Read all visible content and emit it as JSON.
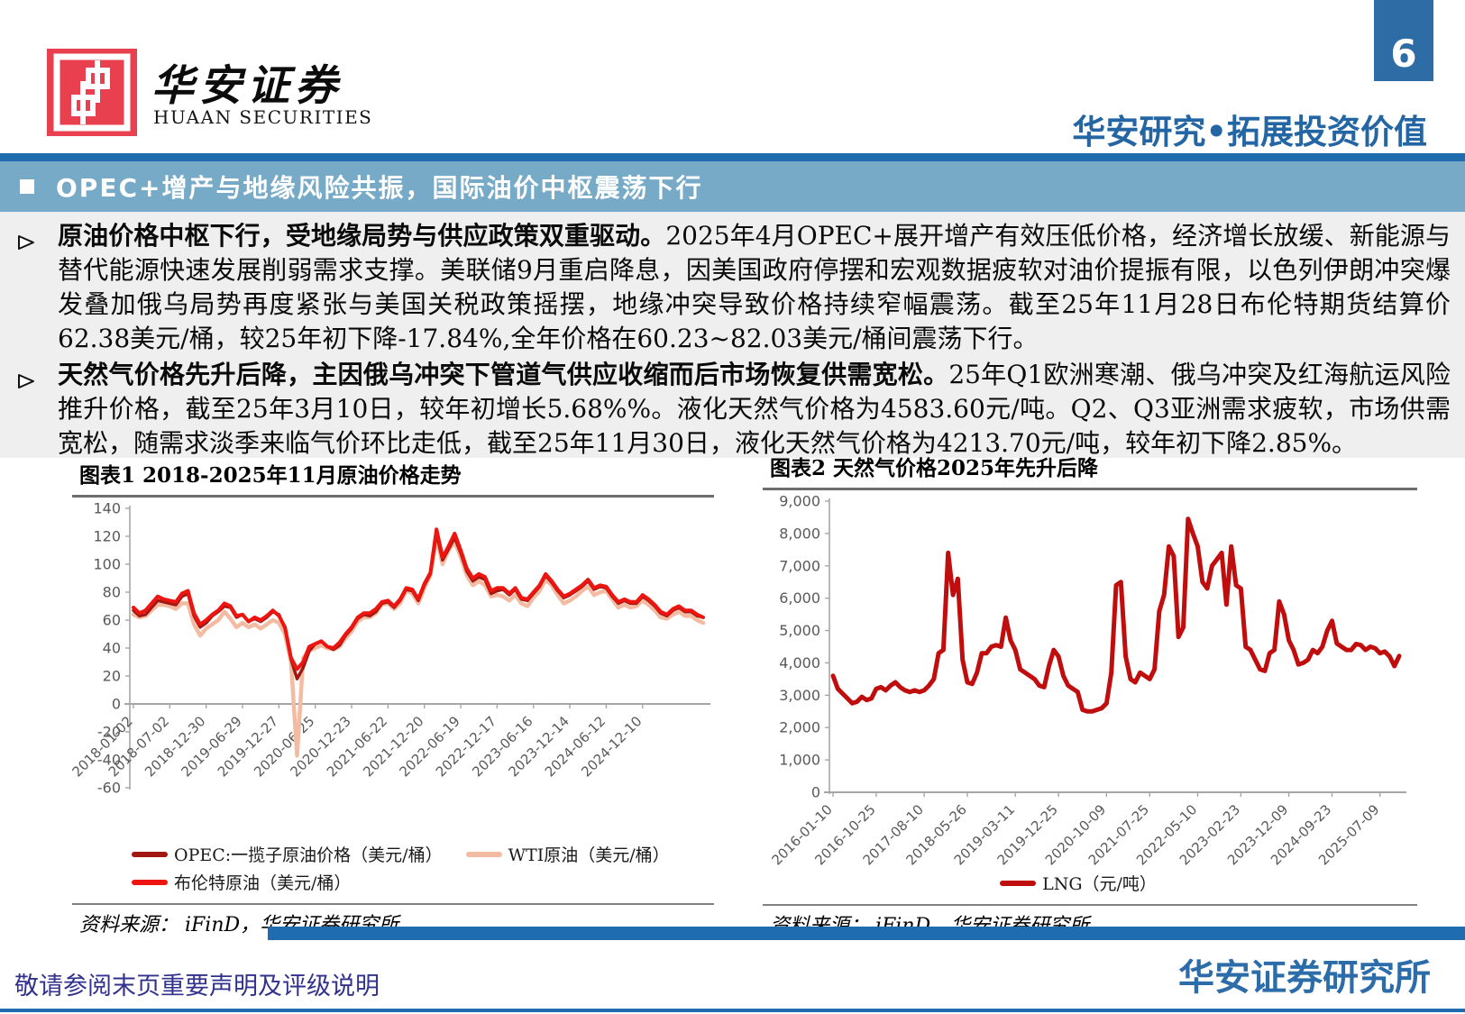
{
  "header": {
    "brand_cn": "华安证券",
    "brand_en": "HUAAN SECURITIES",
    "page_number": "6",
    "slogan": "华安研究•拓展投资价值",
    "section_title": "OPEC+增产与地缘风险共振，国际油价中枢震荡下行"
  },
  "bullets": [
    {
      "lead": "原油价格中枢下行，受地缘局势与供应政策双重驱动。",
      "body": "2025年4月OPEC+展开增产有效压低价格，经济增长放缓、新能源与替代能源快速发展削弱需求支撑。美联储9月重启降息，因美国政府停摆和宏观数据疲软对油价提振有限，以色列伊朗冲突爆发叠加俄乌局势再度紧张与美国关税政策摇摆，地缘冲突导致价格持续窄幅震荡。截至25年11月28日布伦特期货结算价62.38美元/桶，较25年初下降-17.84%,全年价格在60.23~82.03美元/桶间震荡下行。"
    },
    {
      "lead": "天然气价格先升后降，主因俄乌冲突下管道气供应收缩而后市场恢复供需宽松。",
      "body": "25年Q1欧洲寒潮、俄乌冲突及红海航运风险推升价格，截至25年3月10日，较年初增长5.68%%。液化天然气价格为4583.60元/吨。Q2、Q3亚洲需求疲软，市场供需宽松，随需求淡季来临气价环比走低，截至25年11月30日，液化天然气价格为4213.70元/吨，较年初下降2.85%。"
    }
  ],
  "charts": [
    {
      "title": "图表1 2018-2025年11月原油价格走势",
      "source": "资料来源：  iFinD，华安证券研究所"
    },
    {
      "title": "图表2 天然气价格2025年先升后降",
      "source": "资料来源：  iFinD，华安证券研究所"
    }
  ],
  "footer": {
    "disclaimer": "敬请参阅末页重要声明及评级说明",
    "institute": "华安证券研究所"
  },
  "colors": {
    "accent_blue": "#1F6CB0",
    "band_blue": "#76AAC7",
    "strip_blue": "#1E6CAD",
    "page_box_blue": "#2E6CA6",
    "slogan_blue": "#2465A4",
    "logo_red": "#E8404F",
    "opec_dark_red": "#A0180F",
    "wti_salmon": "#F3BCA2",
    "brent_red": "#EE1511",
    "lng_red": "#C00D0D"
  },
  "chart_data": [
    {
      "type": "line",
      "title": "图表1 2018-2025年11月原油价格走势",
      "ylabel": "美元/桶",
      "ylim": [
        -60,
        140
      ],
      "yticks": [
        140,
        120,
        100,
        80,
        60,
        40,
        20,
        0,
        -20,
        -40,
        -60
      ],
      "ytick_labels": [
        "140",
        "120",
        "100",
        "80",
        "60",
        "40",
        "20",
        "0",
        "-20",
        "-40",
        "-60"
      ],
      "grid": false,
      "legend_position": "bottom",
      "xticks": [
        {
          "label": "2018-01-02",
          "i": 0
        },
        {
          "label": "2018-07-02",
          "i": 6
        },
        {
          "label": "2018-12-30",
          "i": 12
        },
        {
          "label": "2019-06-29",
          "i": 18
        },
        {
          "label": "2019-12-27",
          "i": 24
        },
        {
          "label": "2020-06-25",
          "i": 30
        },
        {
          "label": "2020-12-23",
          "i": 36
        },
        {
          "label": "2021-06-22",
          "i": 42
        },
        {
          "label": "2021-12-20",
          "i": 48
        },
        {
          "label": "2022-06-19",
          "i": 54
        },
        {
          "label": "2022-12-17",
          "i": 60
        },
        {
          "label": "2023-06-16",
          "i": 66
        },
        {
          "label": "2023-12-14",
          "i": 72
        },
        {
          "label": "2024-06-12",
          "i": 78
        },
        {
          "label": "2024-12-10",
          "i": 84
        }
      ],
      "series": [
        {
          "name": "WTI原油（美元/桶）",
          "color": "#F3BCA2",
          "stroke_width": 4.5,
          "values": [
            64,
            62,
            63,
            67,
            71,
            71,
            70,
            68,
            72,
            72,
            57,
            49,
            54,
            57,
            60,
            66,
            61,
            55,
            58,
            55,
            57,
            54,
            57,
            60,
            58,
            50,
            30,
            -37,
            33,
            38,
            40,
            42,
            40,
            39,
            41,
            47,
            52,
            59,
            62,
            62,
            65,
            71,
            72,
            68,
            72,
            81,
            79,
            72,
            83,
            92,
            119,
            100,
            110,
            116,
            105,
            92,
            85,
            88,
            85,
            77,
            78,
            77,
            74,
            78,
            72,
            70,
            76,
            81,
            89,
            85,
            78,
            72,
            74,
            77,
            81,
            84,
            78,
            80,
            81,
            75,
            69,
            71,
            69,
            70,
            74,
            71,
            67,
            62,
            61,
            64,
            66,
            63,
            63,
            60,
            58
          ]
        },
        {
          "name": "OPEC:一揽子原油价格（美元/桶）",
          "color": "#A0180F",
          "stroke_width": 3.5,
          "values": [
            67,
            63,
            64,
            69,
            74,
            73,
            72,
            71,
            77,
            79,
            63,
            55,
            58,
            63,
            66,
            70,
            69,
            62,
            64,
            59,
            61,
            59,
            62,
            66,
            64,
            54,
            32,
            18,
            26,
            38,
            43,
            45,
            41,
            39,
            42,
            49,
            54,
            61,
            64,
            63,
            66,
            72,
            73,
            69,
            74,
            82,
            81,
            74,
            85,
            93,
            122,
            103,
            111,
            119,
            108,
            95,
            88,
            91,
            89,
            79,
            81,
            82,
            78,
            82,
            75,
            74,
            79,
            84,
            92,
            87,
            81,
            76,
            78,
            81,
            84,
            88,
            82,
            84,
            83,
            77,
            72,
            74,
            72,
            72,
            77,
            74,
            70,
            65,
            63,
            67,
            69,
            66,
            66,
            63,
            62
          ]
        },
        {
          "name": "布伦特原油（美元/桶）",
          "color": "#EE1511",
          "stroke_width": 4,
          "values": [
            69,
            65,
            67,
            72,
            77,
            75,
            74,
            73,
            79,
            81,
            65,
            57,
            60,
            64,
            67,
            72,
            70,
            63,
            64,
            59,
            62,
            60,
            63,
            67,
            63,
            55,
            33,
            25,
            30,
            41,
            43,
            45,
            41,
            40,
            44,
            50,
            55,
            62,
            65,
            65,
            68,
            73,
            74,
            70,
            75,
            83,
            82,
            75,
            86,
            94,
            125,
            105,
            113,
            122,
            110,
            97,
            90,
            93,
            91,
            81,
            83,
            83,
            79,
            83,
            76,
            75,
            80,
            85,
            93,
            88,
            82,
            77,
            79,
            82,
            85,
            89,
            83,
            85,
            84,
            78,
            73,
            75,
            73,
            73,
            78,
            75,
            71,
            66,
            64,
            68,
            70,
            67,
            67,
            64,
            62
          ]
        }
      ],
      "legend": [
        {
          "label": "OPEC:一揽子原油价格（美元/桶）",
          "color": "#A0180F"
        },
        {
          "label": "WTI原油（美元/桶）",
          "color": "#F3BCA2"
        },
        {
          "label": "布伦特原油（美元/桶）",
          "color": "#EE1511"
        }
      ]
    },
    {
      "type": "line",
      "title": "图表2 天然气价格2025年先升后降",
      "ylabel": "元/吨",
      "ylim": [
        0,
        9000
      ],
      "yticks": [
        9000,
        8000,
        7000,
        6000,
        5000,
        4000,
        3000,
        2000,
        1000,
        0
      ],
      "ytick_labels": [
        "9,000",
        "8,000",
        "7,000",
        "6,000",
        "5,000",
        "4,000",
        "3,000",
        "2,000",
        "1,000",
        "0"
      ],
      "grid": false,
      "legend_position": "bottom",
      "xticks": [
        {
          "label": "2016-01-10",
          "i": 0
        },
        {
          "label": "2016-10-25",
          "i": 9
        },
        {
          "label": "2017-08-10",
          "i": 19
        },
        {
          "label": "2018-05-26",
          "i": 28
        },
        {
          "label": "2019-03-11",
          "i": 38
        },
        {
          "label": "2019-12-25",
          "i": 47
        },
        {
          "label": "2020-10-09",
          "i": 57
        },
        {
          "label": "2021-07-25",
          "i": 66
        },
        {
          "label": "2022-05-10",
          "i": 76
        },
        {
          "label": "2023-02-23",
          "i": 85
        },
        {
          "label": "2023-12-09",
          "i": 95
        },
        {
          "label": "2024-09-23",
          "i": 104
        },
        {
          "label": "2025-07-09",
          "i": 114
        }
      ],
      "series": [
        {
          "name": "LNG（元/吨）",
          "color": "#C00D0D",
          "stroke_width": 5,
          "values": [
            3600,
            3200,
            3050,
            2900,
            2750,
            2800,
            2950,
            2850,
            2900,
            3200,
            3250,
            3150,
            3300,
            3400,
            3250,
            3150,
            3100,
            3150,
            3100,
            3150,
            3300,
            3500,
            4300,
            4400,
            7400,
            6100,
            6600,
            4100,
            3400,
            3350,
            3700,
            4300,
            4300,
            4500,
            4550,
            4500,
            5400,
            4700,
            4400,
            3800,
            3700,
            3600,
            3500,
            3300,
            3250,
            3900,
            4400,
            4200,
            3600,
            3300,
            3200,
            3100,
            2550,
            2500,
            2500,
            2550,
            2600,
            2750,
            3700,
            6400,
            6500,
            4200,
            3500,
            3400,
            3700,
            3600,
            3500,
            3800,
            5600,
            6100,
            7600,
            7300,
            4800,
            5100,
            8450,
            8000,
            7600,
            6500,
            6300,
            7000,
            7200,
            7400,
            5800,
            7600,
            6400,
            6300,
            4500,
            4400,
            4100,
            3800,
            3750,
            4300,
            4400,
            5900,
            5500,
            4700,
            4400,
            3950,
            4000,
            4100,
            4400,
            4300,
            4500,
            5000,
            5300,
            4600,
            4500,
            4400,
            4400,
            4583,
            4550,
            4400,
            4500,
            4450,
            4300,
            4350,
            4200,
            3900,
            4214
          ]
        }
      ],
      "legend": [
        {
          "label": "LNG（元/吨）",
          "color": "#C00D0D"
        }
      ]
    }
  ]
}
